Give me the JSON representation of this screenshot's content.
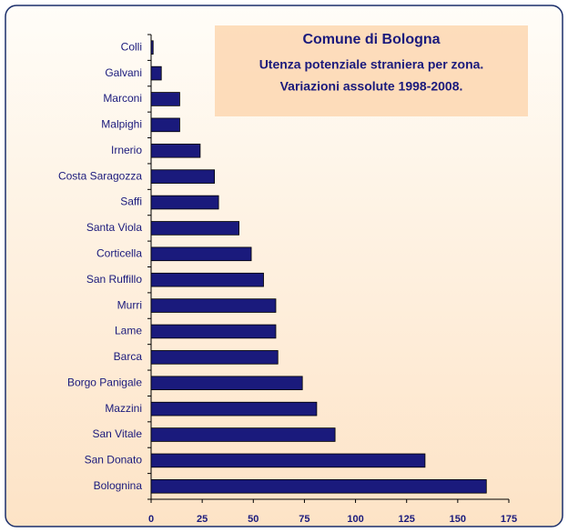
{
  "chart_data": {
    "type": "barh",
    "title": "Comune di Bologna",
    "subtitle": [
      "Utenza potenziale straniera per zona.",
      "Variazioni assolute 1998-2008."
    ],
    "categories": [
      "Colli",
      "Galvani",
      "Marconi",
      "Malpighi",
      "Irnerio",
      "Costa Saragozza",
      "Saffi",
      "Santa Viola",
      "Corticella",
      "San Ruffillo",
      "Murri",
      "Lame",
      "Barca",
      "Borgo Panigale",
      "Mazzini",
      "San Vitale",
      "San Donato",
      "Bolognina"
    ],
    "values": [
      1,
      5,
      14,
      14,
      24,
      31,
      33,
      43,
      49,
      55,
      61,
      61,
      62,
      74,
      81,
      90,
      134,
      164
    ],
    "color": "#1a1a7c",
    "xlim": [
      0,
      175
    ],
    "xticks": [
      0,
      25,
      50,
      75,
      100,
      125,
      150,
      175
    ],
    "grid": false
  }
}
